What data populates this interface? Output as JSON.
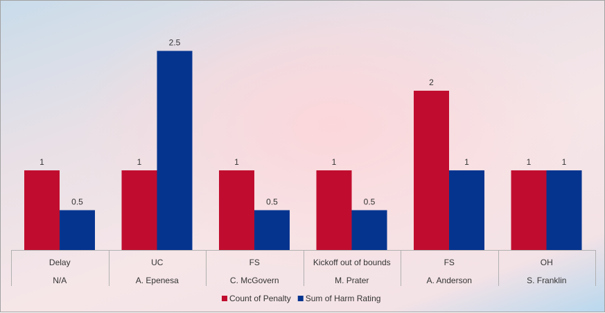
{
  "chart_data": {
    "type": "bar",
    "title": "",
    "xlabel": "",
    "ylabel": "",
    "ylim": [
      0,
      3
    ],
    "grid": false,
    "categories": [
      {
        "penalty": "Delay",
        "player": "N/A"
      },
      {
        "penalty": "UC",
        "player": "A. Epenesa"
      },
      {
        "penalty": "FS",
        "player": "C. McGovern"
      },
      {
        "penalty": "Kickoff out of bounds",
        "player": "M. Prater"
      },
      {
        "penalty": "FS",
        "player": "A. Anderson"
      },
      {
        "penalty": "OH",
        "player": "S. Franklin"
      }
    ],
    "series": [
      {
        "name": "Count of Penalty",
        "color": "#c00d2f",
        "values": [
          1,
          1,
          1,
          1,
          2,
          1
        ]
      },
      {
        "name": "Sum of Harm Rating",
        "color": "#05348f",
        "values": [
          0.5,
          2.5,
          0.5,
          0.5,
          1,
          1
        ]
      }
    ],
    "legend_position": "bottom"
  }
}
